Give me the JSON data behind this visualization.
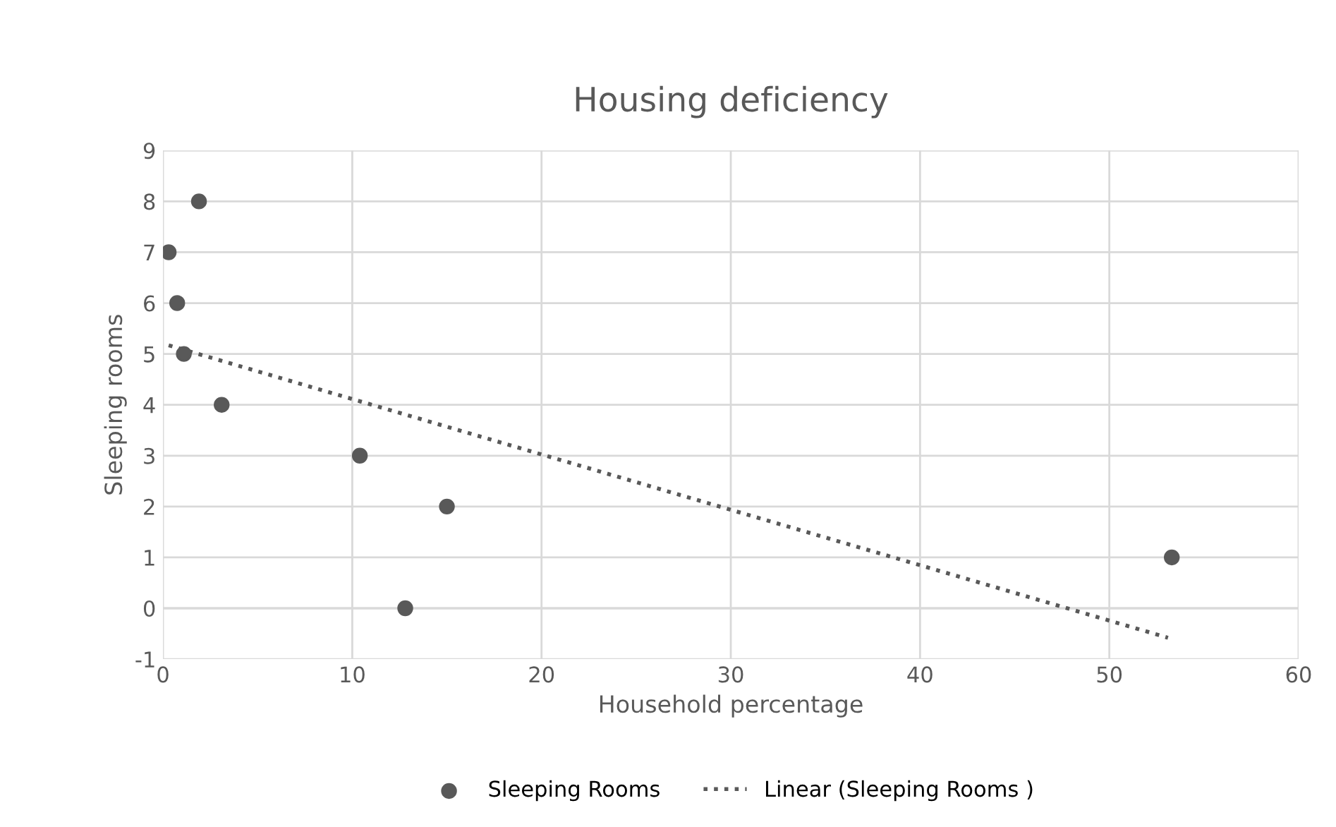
{
  "chart_data": {
    "type": "scatter",
    "title": "Housing deficiency",
    "xlabel": "Household percentage",
    "ylabel": "Sleeping rooms",
    "xlim": [
      0,
      60
    ],
    "xticks": [
      0,
      10,
      20,
      30,
      40,
      50,
      60
    ],
    "ylim": [
      -1,
      9
    ],
    "yticks": [
      -1,
      0,
      1,
      2,
      3,
      4,
      5,
      6,
      7,
      8,
      9
    ],
    "grid": true,
    "legend": "bottom",
    "series": [
      {
        "name": "Sleeping Rooms",
        "color": "#595959",
        "marker": "circle",
        "x": [
          1.9,
          0.3,
          0.75,
          1.1,
          3.1,
          10.4,
          15.0,
          12.8,
          53.3
        ],
        "values": [
          8,
          7,
          6,
          5,
          4,
          3,
          2,
          0,
          1
        ]
      },
      {
        "name": "Linear (Sleeping Rooms )",
        "type": "line",
        "color": "#595959",
        "line_style": "dotted",
        "marker": "none",
        "x": [
          0.3,
          53.1
        ],
        "values": [
          5.17,
          -0.58
        ]
      }
    ]
  }
}
